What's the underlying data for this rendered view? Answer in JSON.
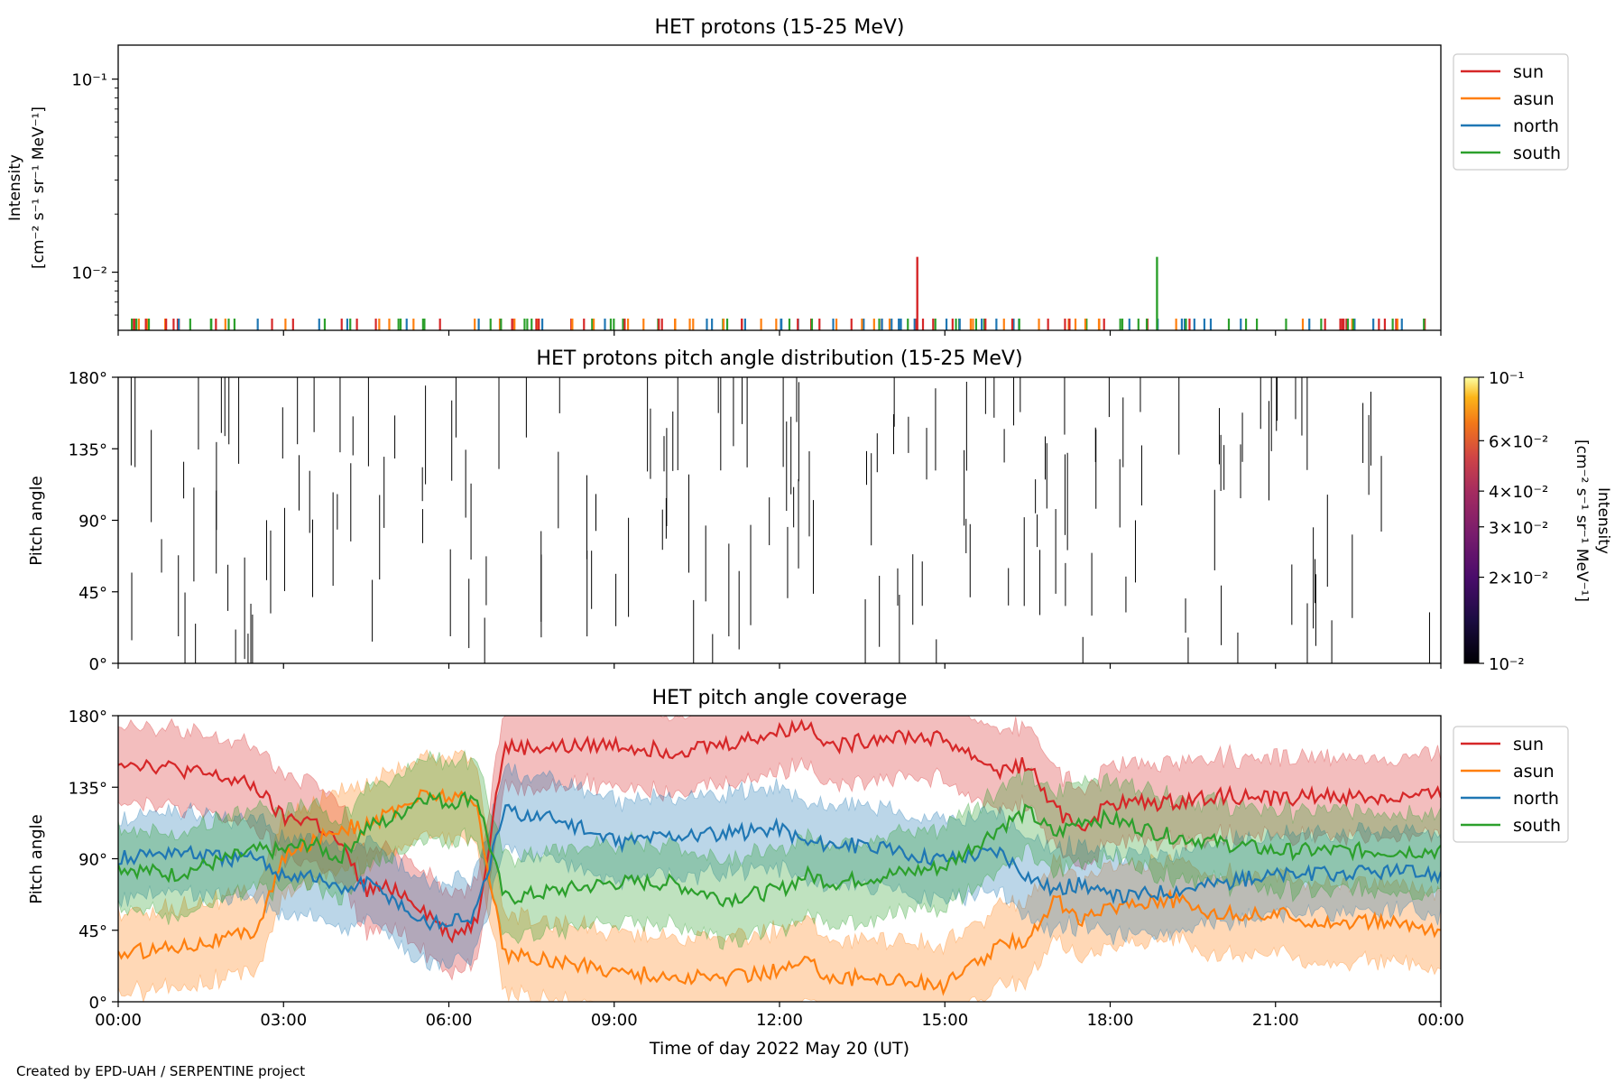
{
  "footer": "Created by EPD-UAH / SERPENTINE project",
  "xlabel": "Time of day 2022 May 20 (UT)",
  "xticks": [
    "00:00",
    "03:00",
    "06:00",
    "09:00",
    "12:00",
    "15:00",
    "18:00",
    "21:00",
    "00:00"
  ],
  "colors": {
    "sun": "#d62728",
    "asun": "#ff7f0e",
    "north": "#1f77b4",
    "south": "#2ca02c"
  },
  "chart_data": [
    {
      "type": "line",
      "title": "HET protons (15-25 MeV)",
      "ylabel_line1": "Intensity",
      "ylabel_line2": "[cm⁻² s⁻¹ sr⁻¹ MeV⁻¹]",
      "yscale": "log",
      "ylim": [
        0.005,
        0.15
      ],
      "yticks": [
        {
          "value": 0.1,
          "label": "10⁻¹"
        },
        {
          "value": 0.01,
          "label": "10⁻²"
        }
      ],
      "legend": [
        "sun",
        "asun",
        "north",
        "south"
      ],
      "legend_position": "outside-right-top",
      "series": [
        {
          "name": "sun",
          "spikes": [
            {
              "x": 14.5,
              "y": 0.012
            }
          ]
        },
        {
          "name": "south",
          "spikes": [
            {
              "x": 18.85,
              "y": 0.012
            }
          ]
        }
      ]
    },
    {
      "type": "heatmap",
      "title": "HET protons pitch angle distribution (15-25 MeV)",
      "ylabel": "Pitch angle",
      "ylim": [
        0,
        180
      ],
      "yticks": [
        "0°",
        "45°",
        "90°",
        "135°",
        "180°"
      ],
      "colorbar": {
        "label_line1": "Intensity",
        "label_line2": "[cm⁻² s⁻¹ sr⁻¹ MeV⁻¹]",
        "scale": "log",
        "range": [
          0.01,
          0.1
        ],
        "ticks": [
          "10⁻²",
          "2×10⁻²",
          "3×10⁻²",
          "4×10⁻²",
          "6×10⁻²",
          "10⁻¹"
        ]
      }
    },
    {
      "type": "area",
      "title": "HET pitch angle coverage",
      "ylabel": "Pitch angle",
      "ylim": [
        0,
        180
      ],
      "yticks": [
        "0°",
        "45°",
        "90°",
        "135°",
        "180°"
      ],
      "legend": [
        "sun",
        "asun",
        "north",
        "south"
      ],
      "legend_position": "outside-right-top",
      "x": [
        0,
        1,
        2,
        2.5,
        3,
        3.5,
        4,
        4.5,
        5,
        5.5,
        6,
        6.5,
        7,
        8,
        9,
        10,
        11,
        12,
        12.5,
        13,
        14,
        15,
        16,
        16.5,
        17,
        17.5,
        18,
        19,
        20,
        21,
        22,
        23,
        24
      ],
      "series": [
        {
          "name": "sun",
          "values": [
            152,
            147,
            140,
            135,
            115,
            115,
            100,
            70,
            72,
            60,
            42,
            50,
            160,
            160,
            162,
            158,
            162,
            170,
            175,
            160,
            168,
            165,
            145,
            150,
            120,
            110,
            125,
            125,
            130,
            128,
            130,
            128,
            130
          ],
          "band": 25
        },
        {
          "name": "asun",
          "values": [
            30,
            35,
            40,
            45,
            90,
            100,
            110,
            110,
            120,
            130,
            130,
            125,
            30,
            25,
            20,
            15,
            15,
            20,
            25,
            15,
            15,
            10,
            35,
            40,
            65,
            50,
            60,
            65,
            55,
            55,
            50,
            50,
            45
          ],
          "band": 25
        },
        {
          "name": "north",
          "values": [
            90,
            95,
            90,
            90,
            80,
            80,
            70,
            75,
            65,
            50,
            50,
            55,
            120,
            115,
            100,
            105,
            105,
            110,
            100,
            100,
            95,
            90,
            95,
            80,
            70,
            75,
            65,
            70,
            75,
            80,
            80,
            82,
            80
          ],
          "band": 25
        },
        {
          "name": "south",
          "values": [
            85,
            80,
            90,
            95,
            95,
            100,
            90,
            110,
            115,
            130,
            125,
            130,
            65,
            70,
            75,
            75,
            65,
            70,
            80,
            75,
            80,
            85,
            110,
            120,
            105,
            115,
            115,
            105,
            100,
            95,
            95,
            95,
            95
          ],
          "band": 25
        }
      ]
    }
  ]
}
